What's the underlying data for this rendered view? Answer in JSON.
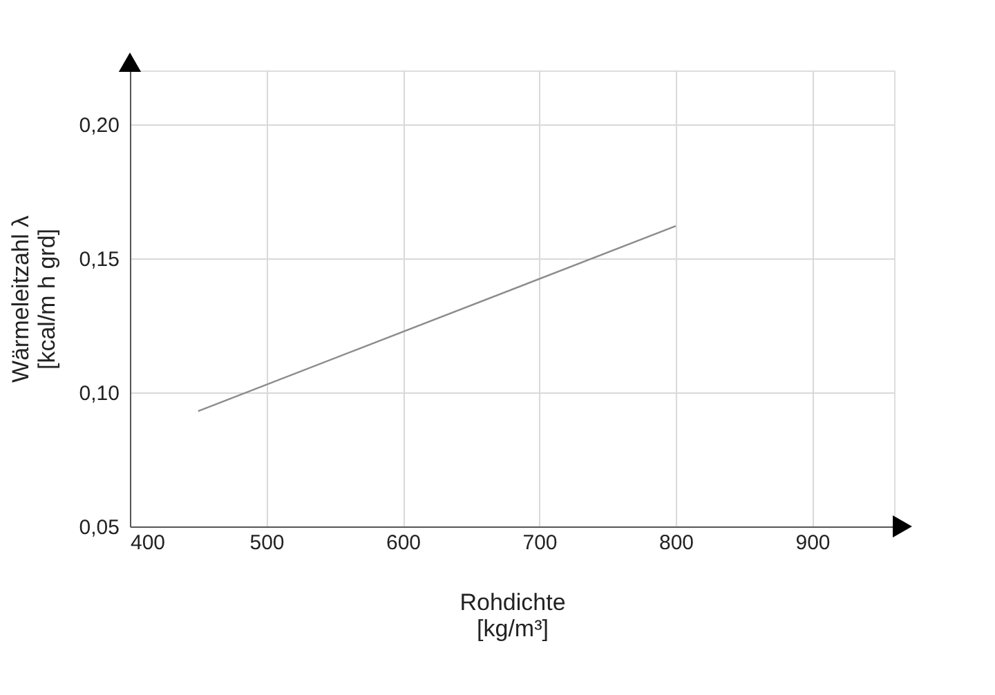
{
  "chart_data": {
    "type": "line",
    "xlabel": "Rohdichte\n[kg/m³]",
    "ylabel": "Wärmeleitzahl λ\n[kcal/m h grd]",
    "x": [
      450,
      800
    ],
    "series": [
      {
        "color": "#8c8c8c",
        "values": [
          0.093,
          0.162
        ]
      }
    ],
    "xlim": [
      400,
      960
    ],
    "ylim": [
      0.05,
      0.22
    ],
    "xticks": [
      400,
      500,
      600,
      700,
      800,
      900
    ],
    "yticks": [
      {
        "value": 0.05,
        "label": "0,05"
      },
      {
        "value": 0.1,
        "label": "0,10"
      },
      {
        "value": 0.15,
        "label": "0,15"
      },
      {
        "value": 0.2,
        "label": "0,20"
      }
    ],
    "grid": true,
    "marker": "none",
    "line_style": "solid"
  }
}
